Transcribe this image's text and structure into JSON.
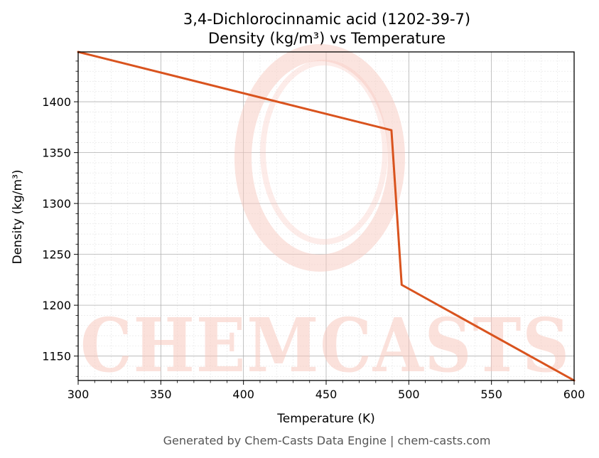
{
  "colors": {
    "line": "#d9531e",
    "watermark": "#f8c9bf",
    "grid_major": "#b0b0b0",
    "grid_minor": "#e4e4e4",
    "footer_text": "#555555"
  },
  "watermark": {
    "text": "CHEMCASTS"
  },
  "footer": "Generated by Chem-Casts Data Engine | chem-casts.com",
  "chart_data": {
    "type": "line",
    "title": "3,4-Dichlorocinnamic acid (1202-39-7)",
    "subtitle": "Density (kg/m³) vs Temperature",
    "xlabel": "Temperature (K)",
    "ylabel": "Density (kg/m³)",
    "xlim": [
      300,
      600
    ],
    "ylim": [
      1126,
      1449
    ],
    "xticks": [
      300,
      350,
      400,
      450,
      500,
      550,
      600
    ],
    "yticks": [
      1150,
      1200,
      1250,
      1300,
      1350,
      1400
    ],
    "grid": true,
    "minor_grid": true,
    "legend": "none",
    "series": [
      {
        "x": [
          300,
          489.5,
          495.7,
          600
        ],
        "y": [
          1449,
          1372,
          1220,
          1126
        ]
      }
    ]
  }
}
